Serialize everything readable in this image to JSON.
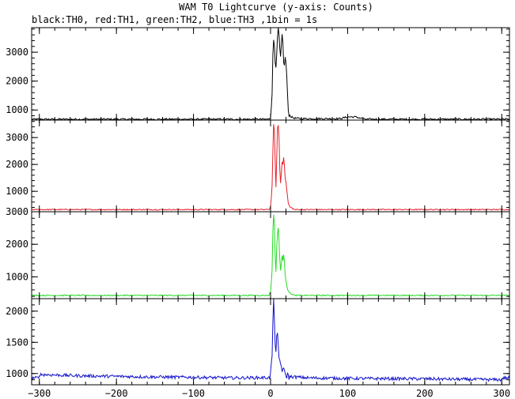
{
  "chart_data": {
    "type": "line",
    "title": "WAM T0 Lightcurve (y-axis: Counts)",
    "subtitle": "black:TH0, red:TH1, green:TH2, blue:TH3 ,1bin = 1s",
    "xlabel": "",
    "xlim": [
      -310,
      310
    ],
    "x_ticks": [
      -300,
      -200,
      -100,
      0,
      100,
      200,
      300
    ],
    "x_tick_labels": [
      "−300",
      "−200",
      "−100",
      "0",
      "100",
      "200",
      "300"
    ],
    "grid": false,
    "series": [
      {
        "name": "TH0",
        "color": "#000000",
        "ylim": [
          650,
          3850
        ],
        "y_ticks": [
          1000,
          2000,
          3000
        ],
        "y_tick_labels": [
          "1000",
          "2000",
          "3000"
        ],
        "background": 680,
        "noise": 30,
        "points": [
          [
            -2,
            690
          ],
          [
            0,
            800
          ],
          [
            2,
            1500
          ],
          [
            3,
            2900
          ],
          [
            4,
            3450
          ],
          [
            5,
            3300
          ],
          [
            6,
            2700
          ],
          [
            7,
            2400
          ],
          [
            8,
            2900
          ],
          [
            9,
            3500
          ],
          [
            10,
            3850
          ],
          [
            11,
            3550
          ],
          [
            12,
            3100
          ],
          [
            13,
            2800
          ],
          [
            14,
            3200
          ],
          [
            15,
            3600
          ],
          [
            16,
            3300
          ],
          [
            17,
            2700
          ],
          [
            18,
            2500
          ],
          [
            19,
            2850
          ],
          [
            20,
            2600
          ],
          [
            21,
            2200
          ],
          [
            22,
            1500
          ],
          [
            23,
            1000
          ],
          [
            24,
            850
          ],
          [
            26,
            780
          ],
          [
            30,
            720
          ],
          [
            40,
            700
          ],
          [
            90,
            700
          ],
          [
            100,
            760
          ],
          [
            110,
            760
          ],
          [
            120,
            700
          ]
        ]
      },
      {
        "name": "TH1",
        "color": "#e8202a",
        "ylim": [
          240,
          3650
        ],
        "y_ticks": [
          1000,
          2000,
          3000
        ],
        "y_tick_labels": [
          "1000",
          "2000",
          "3000"
        ],
        "background": 320,
        "noise": 20,
        "points": [
          [
            -2,
            330
          ],
          [
            0,
            420
          ],
          [
            2,
            1200
          ],
          [
            3,
            2500
          ],
          [
            4,
            3450
          ],
          [
            5,
            3200
          ],
          [
            6,
            2100
          ],
          [
            7,
            1200
          ],
          [
            8,
            2200
          ],
          [
            9,
            3300
          ],
          [
            10,
            3500
          ],
          [
            11,
            3000
          ],
          [
            12,
            1800
          ],
          [
            13,
            1300
          ],
          [
            14,
            1700
          ],
          [
            15,
            2100
          ],
          [
            16,
            2000
          ],
          [
            17,
            2300
          ],
          [
            18,
            2000
          ],
          [
            19,
            1500
          ],
          [
            20,
            1300
          ],
          [
            21,
            1100
          ],
          [
            22,
            800
          ],
          [
            23,
            550
          ],
          [
            25,
            420
          ],
          [
            30,
            340
          ]
        ]
      },
      {
        "name": "TH2",
        "color": "#22dd22",
        "ylim": [
          330,
          3000
        ],
        "y_ticks": [
          1000,
          2000,
          3000
        ],
        "y_tick_labels": [
          "1000",
          "2000",
          "3000"
        ],
        "background": 430,
        "noise": 18,
        "points": [
          [
            -2,
            440
          ],
          [
            0,
            520
          ],
          [
            2,
            1200
          ],
          [
            3,
            2400
          ],
          [
            4,
            2950
          ],
          [
            5,
            2600
          ],
          [
            6,
            1600
          ],
          [
            7,
            1200
          ],
          [
            8,
            1900
          ],
          [
            9,
            2350
          ],
          [
            10,
            2500
          ],
          [
            11,
            2100
          ],
          [
            12,
            1500
          ],
          [
            13,
            1200
          ],
          [
            14,
            1400
          ],
          [
            15,
            1700
          ],
          [
            16,
            1500
          ],
          [
            17,
            1650
          ],
          [
            18,
            1400
          ],
          [
            19,
            1100
          ],
          [
            20,
            900
          ],
          [
            22,
            650
          ],
          [
            25,
            500
          ],
          [
            30,
            440
          ]
        ]
      },
      {
        "name": "TH3",
        "color": "#1111cc",
        "ylim": [
          820,
          2200
        ],
        "y_ticks": [
          1000,
          1500,
          2000
        ],
        "y_tick_labels": [
          "1000",
          "1500",
          "2000"
        ],
        "background": 930,
        "noise": 25,
        "points": [
          [
            -300,
            985
          ],
          [
            -250,
            965
          ],
          [
            -200,
            955
          ],
          [
            -150,
            945
          ],
          [
            -100,
            940
          ],
          [
            -50,
            930
          ],
          [
            -2,
            935
          ],
          [
            0,
            980
          ],
          [
            2,
            1300
          ],
          [
            3,
            1800
          ],
          [
            4,
            2150
          ],
          [
            5,
            1900
          ],
          [
            6,
            1500
          ],
          [
            7,
            1350
          ],
          [
            8,
            1550
          ],
          [
            9,
            1600
          ],
          [
            10,
            1400
          ],
          [
            11,
            1250
          ],
          [
            12,
            1200
          ],
          [
            13,
            1180
          ],
          [
            14,
            1100
          ],
          [
            16,
            1050
          ],
          [
            20,
            980
          ],
          [
            25,
            950
          ],
          [
            50,
            930
          ],
          [
            120,
            920
          ],
          [
            200,
            915
          ],
          [
            300,
            900
          ]
        ]
      }
    ]
  }
}
